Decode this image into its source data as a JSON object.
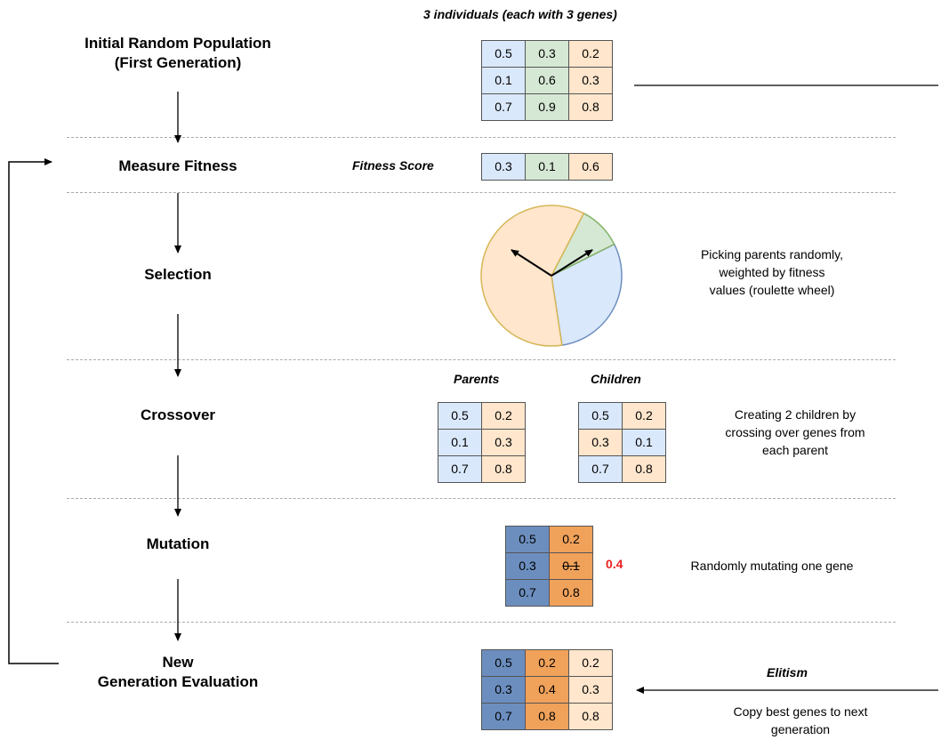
{
  "stages": {
    "initial": {
      "line1": "Initial Random Population",
      "line2": "(First Generation)"
    },
    "fitness": "Measure Fitness",
    "selection": "Selection",
    "crossover": "Crossover",
    "mutation": "Mutation",
    "new_generation": {
      "line1": "New",
      "line2": "Generation Evaluation"
    }
  },
  "population": {
    "caption": "3 individuals (each with 3 genes)",
    "rows": [
      [
        "0.5",
        "0.3",
        "0.2"
      ],
      [
        "0.1",
        "0.6",
        "0.3"
      ],
      [
        "0.7",
        "0.9",
        "0.8"
      ]
    ]
  },
  "fitness": {
    "label": "Fitness Score",
    "values": [
      "0.3",
      "0.1",
      "0.6"
    ]
  },
  "selection": {
    "description": [
      "Picking parents randomly,",
      "weighted by fitness",
      "values (roulette wheel)"
    ],
    "wheel_shares": [
      0.3,
      0.1,
      0.6
    ]
  },
  "crossover": {
    "parents_label": "Parents",
    "children_label": "Children",
    "parents_rows": [
      [
        "0.5",
        "0.2"
      ],
      [
        "0.1",
        "0.3"
      ],
      [
        "0.7",
        "0.8"
      ]
    ],
    "children_rows": [
      [
        "0.5",
        "0.2"
      ],
      [
        "0.3",
        "0.1"
      ],
      [
        "0.7",
        "0.8"
      ]
    ],
    "description": [
      "Creating 2 children by",
      "crossing over genes from",
      "each parent"
    ]
  },
  "mutation": {
    "rows": [
      [
        "0.5",
        "0.2"
      ],
      [
        "0.3",
        "0.1"
      ],
      [
        "0.7",
        "0.8"
      ]
    ],
    "new_value": "0.4",
    "description": "Randomly mutating one gene"
  },
  "new_generation": {
    "rows": [
      [
        "0.5",
        "0.2",
        "0.2"
      ],
      [
        "0.3",
        "0.4",
        "0.3"
      ],
      [
        "0.7",
        "0.8",
        "0.8"
      ]
    ],
    "elitism_label": "Elitism",
    "elitism_description": [
      "Copy best genes to next",
      "generation"
    ]
  },
  "colors": {
    "light_blue": "#dae8fc",
    "light_green": "#d5e8d4",
    "light_orange": "#ffe6cc",
    "dark_blue": "#6c8ebf",
    "dark_orange": "#f0a15a",
    "mutation_red": "#ee2222"
  }
}
